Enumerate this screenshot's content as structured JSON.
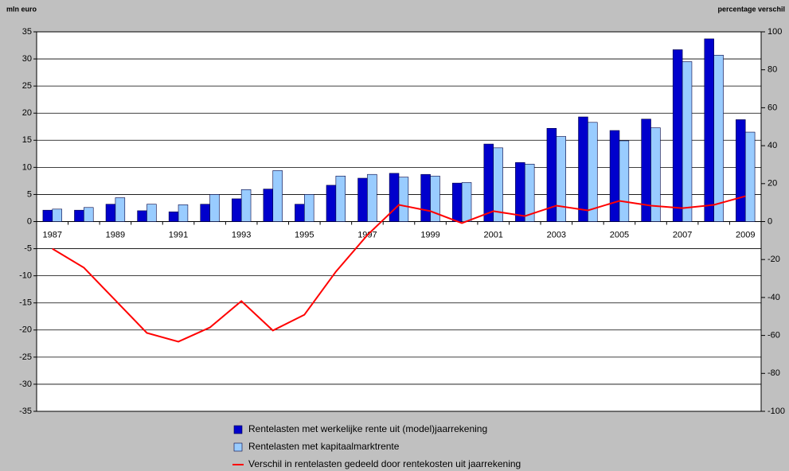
{
  "chart_data": {
    "type": "bar",
    "y_label": "mln euro",
    "y2_label": "percentage verschil",
    "categories": [
      "1987",
      null,
      "1989",
      null,
      "1991",
      null,
      "1993",
      null,
      "1995",
      null,
      "1997",
      null,
      "1999",
      null,
      "2001",
      null,
      "2003",
      null,
      "2005",
      null,
      "2007",
      null,
      "2009"
    ],
    "series": [
      {
        "name": "Rentelasten met werkelijke rente uit (model)jaarrekening",
        "color": "#0000cc",
        "type": "bar",
        "values": [
          2.1,
          2.1,
          3.2,
          2.0,
          1.8,
          3.2,
          4.2,
          6.0,
          3.2,
          6.7,
          8.0,
          8.9,
          8.7,
          7.1,
          14.3,
          10.9,
          17.2,
          19.3,
          16.8,
          18.9,
          31.7,
          33.7,
          18.8
        ]
      },
      {
        "name": "Rentelasten met kapitaalmarktrente",
        "color": "#99ccff",
        "type": "bar",
        "values": [
          2.3,
          2.6,
          4.4,
          3.2,
          3.1,
          5.0,
          5.9,
          9.4,
          5.0,
          8.4,
          8.7,
          8.2,
          8.4,
          7.2,
          13.6,
          10.6,
          15.7,
          18.3,
          14.9,
          17.3,
          29.5,
          30.7,
          16.5
        ]
      },
      {
        "name": "Verschil in rentelasten gedeeld door rentekosten uit jaarrekening",
        "color": "#ff0000",
        "type": "line",
        "axis": "y2",
        "values": [
          -14.3,
          -24.3,
          -41.5,
          -58.7,
          -63.3,
          -55.8,
          -41.9,
          -57.4,
          -49.1,
          -26.4,
          -7.1,
          8.8,
          5.5,
          -0.8,
          5.5,
          2.9,
          8.4,
          5.9,
          10.9,
          8.4,
          7.1,
          8.8,
          13.4
        ]
      }
    ],
    "ylim": [
      -35,
      35
    ],
    "yticks": [
      -35,
      -30,
      -25,
      -20,
      -15,
      -10,
      -5,
      0,
      5,
      10,
      15,
      20,
      25,
      30,
      35
    ],
    "y2lim": [
      -100,
      100
    ],
    "y2ticks": [
      -100,
      -80,
      -60,
      -40,
      -20,
      0,
      20,
      40,
      60,
      80,
      100
    ],
    "grid": true
  }
}
